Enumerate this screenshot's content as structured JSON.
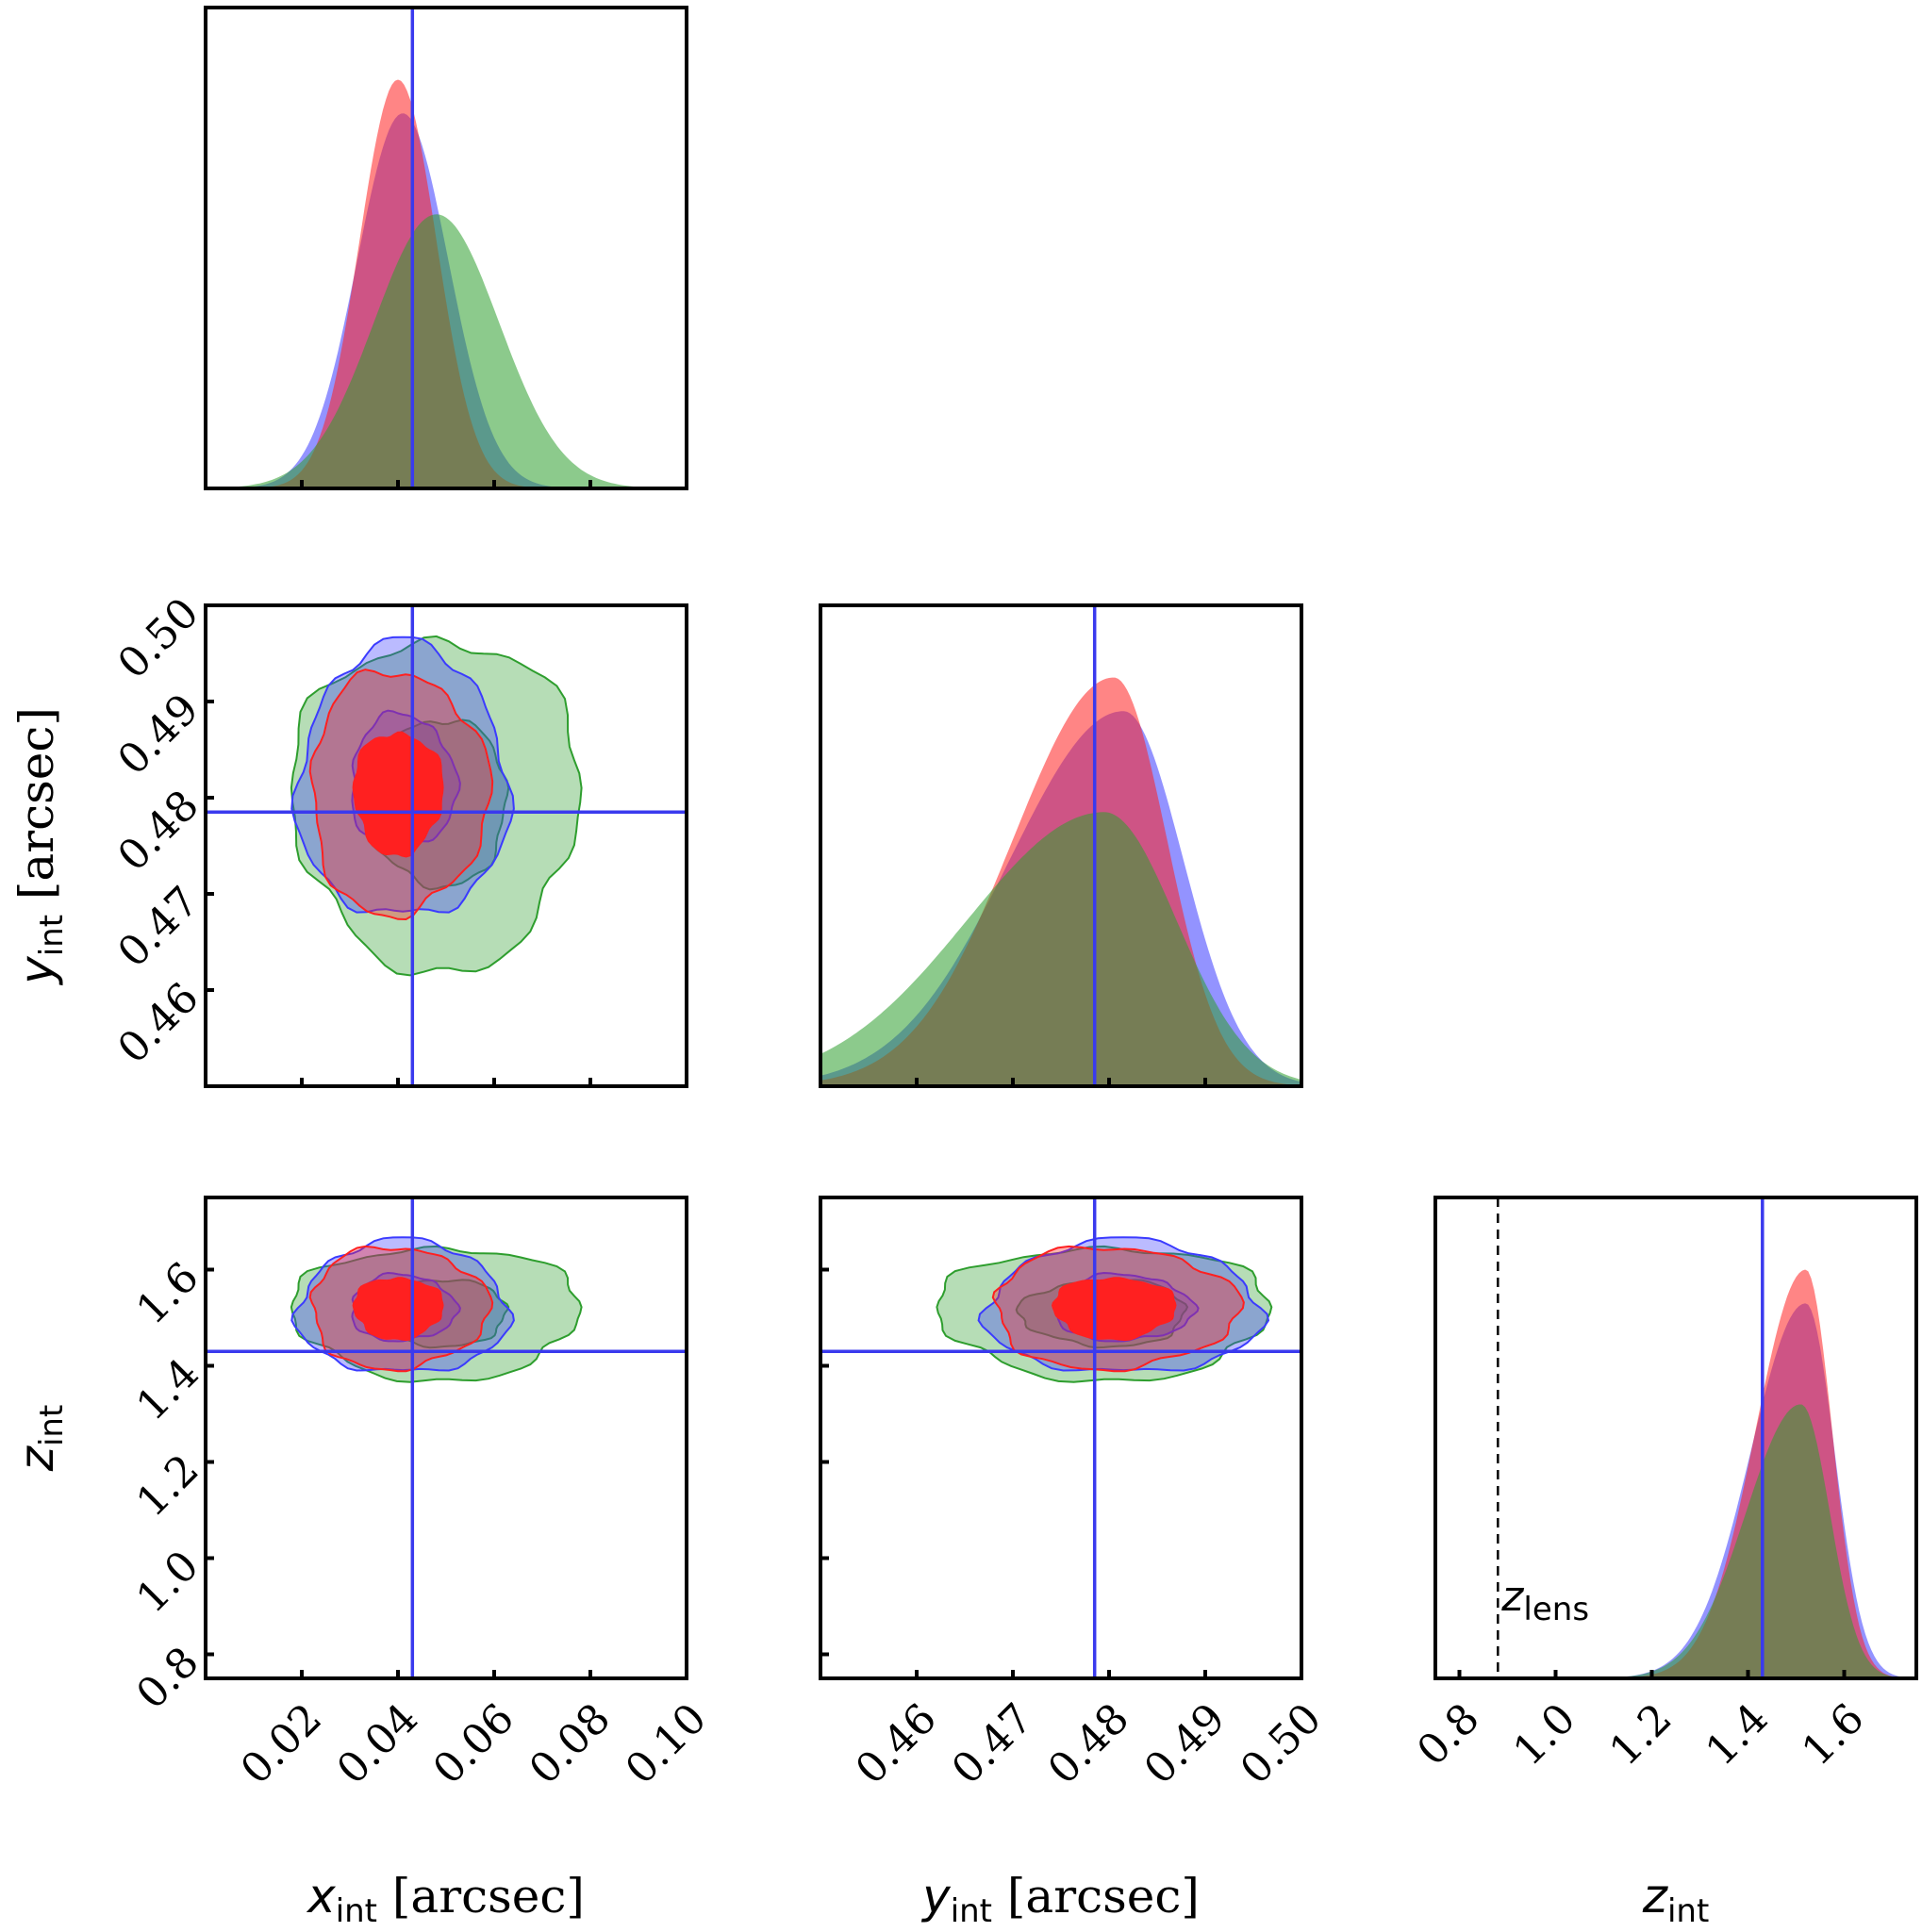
{
  "colors": {
    "blue": "#3b3bff",
    "red": "#ff2020",
    "green": "#2e9e2e",
    "truth": "#3a3aee",
    "overlap": "#9b2d5e"
  },
  "chart_data": {
    "type": "corner",
    "parameters": [
      {
        "key": "x",
        "symbol": "x",
        "subscript": "int",
        "unit": "[arcsec]",
        "range": [
          0.0,
          0.1
        ],
        "ticks": [
          "0.02",
          "0.04",
          "0.06",
          "0.08",
          "0.10"
        ],
        "truth": 0.043
      },
      {
        "key": "y",
        "symbol": "y",
        "subscript": "int",
        "unit": "[arcsec]",
        "range": [
          0.45,
          0.5
        ],
        "ticks": [
          "0.46",
          "0.47",
          "0.48",
          "0.49",
          "0.50"
        ],
        "truth": 0.4785
      },
      {
        "key": "z",
        "symbol": "z",
        "subscript": "int",
        "unit": "",
        "range": [
          0.75,
          1.75
        ],
        "ticks": [
          "0.8",
          "1.0",
          "1.2",
          "1.4",
          "1.6"
        ],
        "truth": 1.43
      }
    ],
    "series": [
      {
        "color_key": "blue",
        "x": {
          "mean": 0.041,
          "sd": 0.0095
        },
        "y": {
          "mean": 0.4815,
          "sd": 0.0062,
          "skew": "left"
        },
        "z": {
          "mean": 1.52,
          "sd": 0.06,
          "skew": "left"
        }
      },
      {
        "color_key": "red",
        "x": {
          "mean": 0.04,
          "sd": 0.008
        },
        "y": {
          "mean": 0.4805,
          "sd": 0.0055,
          "skew": "left"
        },
        "z": {
          "mean": 1.52,
          "sd": 0.055,
          "skew": "left"
        }
      },
      {
        "color_key": "green",
        "x": {
          "mean": 0.048,
          "sd": 0.013
        },
        "y": {
          "mean": 0.4795,
          "sd": 0.0075,
          "skew": "left"
        },
        "z": {
          "mean": 1.51,
          "sd": 0.06,
          "skew": "left"
        }
      }
    ],
    "annotations": [
      {
        "panel": "z-marginal",
        "symbol": "z",
        "subscript": "lens",
        "at": 0.88,
        "style": "dashed"
      }
    ],
    "grid": false,
    "legend": "none"
  }
}
